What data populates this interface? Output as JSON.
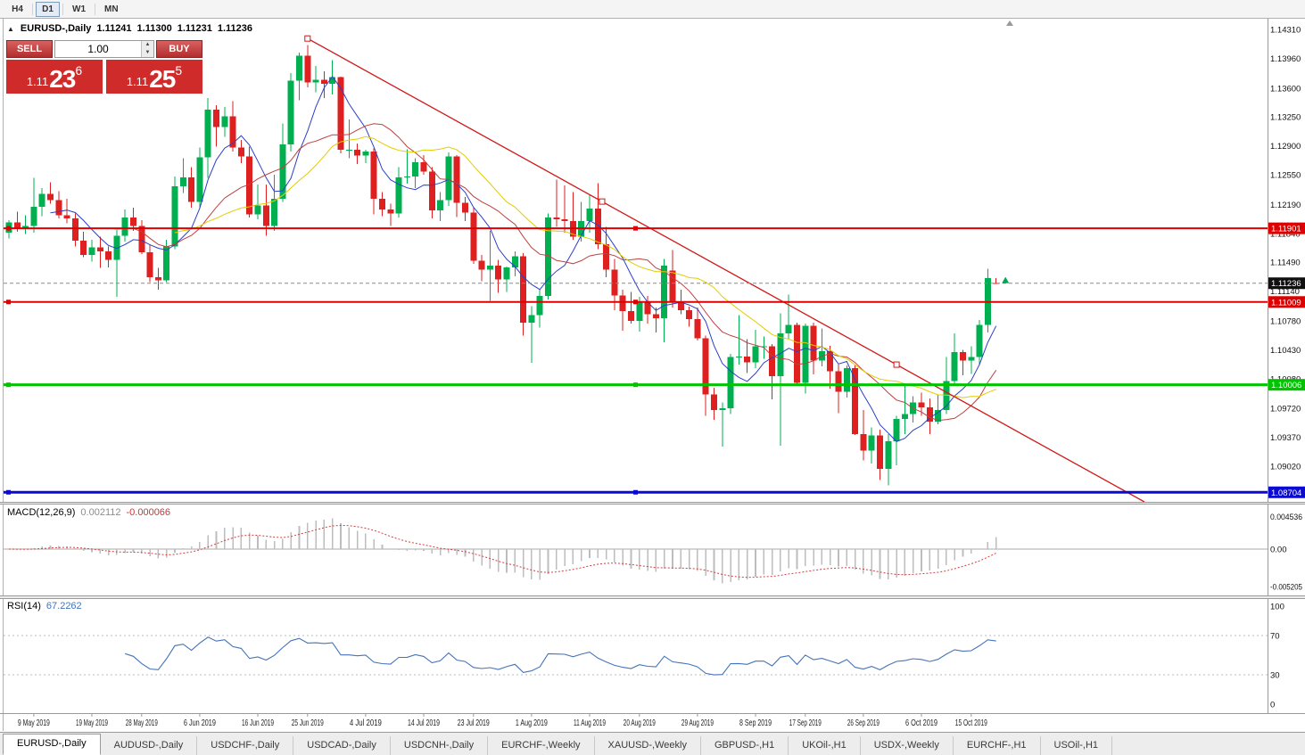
{
  "toolbar": {
    "timeframes": [
      {
        "label": "H4",
        "active": false
      },
      {
        "label": "D1",
        "active": true
      },
      {
        "label": "W1",
        "active": false
      },
      {
        "label": "MN",
        "active": false
      }
    ]
  },
  "chart": {
    "title": "EURUSD-,Daily",
    "ohlc": {
      "open": "1.11241",
      "high": "1.11300",
      "low": "1.11231",
      "close": "1.11236"
    }
  },
  "trade_panel": {
    "sell_label": "SELL",
    "buy_label": "BUY",
    "volume": "1.00",
    "sell_price": {
      "prefix": "1.11",
      "big": "23",
      "sup": "6"
    },
    "buy_price": {
      "prefix": "1.11",
      "big": "25",
      "sup": "5"
    }
  },
  "price_axis": {
    "ticks": [
      "1.14310",
      "1.13960",
      "1.13600",
      "1.13250",
      "1.12900",
      "1.12550",
      "1.12190",
      "1.11840",
      "1.11490",
      "1.11140",
      "1.10780",
      "1.10430",
      "1.10080",
      "1.09720",
      "1.09370",
      "1.09020"
    ]
  },
  "indicators": {
    "macd": {
      "name": "MACD(12,26,9)",
      "value_main": "0.002112",
      "value_signal": "-0.000066",
      "fast": 12,
      "slow": 26,
      "signal": 9,
      "axis": [
        "0.004536",
        "0.00",
        "-0.005205"
      ],
      "hist_color": "#bdbdbd",
      "signal_color": "#d04040"
    },
    "rsi": {
      "name": "RSI(14)",
      "value": "67.2262",
      "period": 14,
      "color": "#4573b9",
      "levels": [
        70,
        30
      ],
      "axis_ticks": [
        "100",
        "70",
        "30",
        "0"
      ]
    }
  },
  "tabs": [
    {
      "label": "EURUSD-,Daily",
      "active": true
    },
    {
      "label": "AUDUSD-,Daily",
      "active": false
    },
    {
      "label": "USDCHF-,Daily",
      "active": false
    },
    {
      "label": "USDCAD-,Daily",
      "active": false
    },
    {
      "label": "USDCNH-,Daily",
      "active": false
    },
    {
      "label": "EURCHF-,Weekly",
      "active": false
    },
    {
      "label": "XAUUSD-,Weekly",
      "active": false
    },
    {
      "label": "GBPUSD-,H1",
      "active": false
    },
    {
      "label": "UKOil-,H1",
      "active": false
    },
    {
      "label": "USDX-,Weekly",
      "active": false
    },
    {
      "label": "EURCHF-,H1",
      "active": false
    },
    {
      "label": "USOil-,H1",
      "active": false
    }
  ],
  "chart_data": {
    "type": "candlestick",
    "symbol": "EURUSD-",
    "timeframe": "Daily",
    "up_color": "#00b050",
    "down_color": "#df2020",
    "candles": [
      [
        1.1185,
        1.12,
        1.1178,
        1.1197
      ],
      [
        1.1197,
        1.121,
        1.1186,
        1.1191
      ],
      [
        1.1191,
        1.1206,
        1.1183,
        1.1193
      ],
      [
        1.1193,
        1.1251,
        1.1185,
        1.1216
      ],
      [
        1.1216,
        1.1239,
        1.1205,
        1.1232
      ],
      [
        1.1232,
        1.1246,
        1.122,
        1.1224
      ],
      [
        1.1224,
        1.1235,
        1.1202,
        1.1206
      ],
      [
        1.1206,
        1.1226,
        1.1196,
        1.1202
      ],
      [
        1.1202,
        1.1208,
        1.1168,
        1.1175
      ],
      [
        1.1175,
        1.1186,
        1.1155,
        1.1158
      ],
      [
        1.1158,
        1.1176,
        1.115,
        1.1167
      ],
      [
        1.1167,
        1.118,
        1.1142,
        1.1162
      ],
      [
        1.1162,
        1.1168,
        1.1143,
        1.1152
      ],
      [
        1.1152,
        1.1188,
        1.1107,
        1.1181
      ],
      [
        1.1181,
        1.1213,
        1.1174,
        1.1203
      ],
      [
        1.1203,
        1.1215,
        1.1187,
        1.1193
      ],
      [
        1.1193,
        1.12,
        1.1159,
        1.1161
      ],
      [
        1.1161,
        1.117,
        1.1125,
        1.1131
      ],
      [
        1.1131,
        1.1142,
        1.1116,
        1.1127
      ],
      [
        1.1127,
        1.1176,
        1.1125,
        1.1168
      ],
      [
        1.1168,
        1.1253,
        1.1165,
        1.1241
      ],
      [
        1.1241,
        1.1275,
        1.1233,
        1.1252
      ],
      [
        1.1252,
        1.1264,
        1.1215,
        1.1222
      ],
      [
        1.1222,
        1.1288,
        1.1215,
        1.1276
      ],
      [
        1.1276,
        1.1348,
        1.1251,
        1.1334
      ],
      [
        1.1334,
        1.1339,
        1.1289,
        1.1313
      ],
      [
        1.1313,
        1.1337,
        1.1301,
        1.1326
      ],
      [
        1.1326,
        1.1344,
        1.1283,
        1.1288
      ],
      [
        1.1288,
        1.1297,
        1.1269,
        1.1277
      ],
      [
        1.1277,
        1.1289,
        1.1203,
        1.1207
      ],
      [
        1.1207,
        1.1243,
        1.1201,
        1.1218
      ],
      [
        1.1218,
        1.1243,
        1.1181,
        1.1193
      ],
      [
        1.1193,
        1.1255,
        1.1187,
        1.1226
      ],
      [
        1.1226,
        1.1317,
        1.1222,
        1.1292
      ],
      [
        1.1292,
        1.1378,
        1.1283,
        1.1369
      ],
      [
        1.1369,
        1.1403,
        1.1345,
        1.1399
      ],
      [
        1.1399,
        1.1412,
        1.1361,
        1.1367
      ],
      [
        1.1367,
        1.1387,
        1.1355,
        1.137
      ],
      [
        1.137,
        1.138,
        1.1348,
        1.1365
      ],
      [
        1.1365,
        1.1394,
        1.1352,
        1.1373
      ],
      [
        1.1373,
        1.1374,
        1.1281,
        1.1285
      ],
      [
        1.1285,
        1.1322,
        1.1275,
        1.1285
      ],
      [
        1.1285,
        1.1293,
        1.1268,
        1.1278
      ],
      [
        1.1278,
        1.1285,
        1.1269,
        1.1283
      ],
      [
        1.1283,
        1.1287,
        1.1207,
        1.1226
      ],
      [
        1.1226,
        1.1234,
        1.1205,
        1.1213
      ],
      [
        1.1213,
        1.122,
        1.1193,
        1.1208
      ],
      [
        1.1208,
        1.1264,
        1.1203,
        1.1252
      ],
      [
        1.1252,
        1.1286,
        1.1244,
        1.1253
      ],
      [
        1.1253,
        1.1275,
        1.1239,
        1.127
      ],
      [
        1.127,
        1.1279,
        1.1255,
        1.1259
      ],
      [
        1.1259,
        1.1264,
        1.1202,
        1.1212
      ],
      [
        1.1212,
        1.1234,
        1.1199,
        1.1224
      ],
      [
        1.1224,
        1.1282,
        1.1217,
        1.1277
      ],
      [
        1.1277,
        1.1279,
        1.1204,
        1.1221
      ],
      [
        1.1221,
        1.1228,
        1.1199,
        1.1209
      ],
      [
        1.1209,
        1.1215,
        1.1147,
        1.1151
      ],
      [
        1.1151,
        1.1158,
        1.1126,
        1.114
      ],
      [
        1.114,
        1.1187,
        1.1102,
        1.1145
      ],
      [
        1.1145,
        1.1152,
        1.1112,
        1.1128
      ],
      [
        1.1128,
        1.1144,
        1.1113,
        1.1143
      ],
      [
        1.1143,
        1.1162,
        1.1132,
        1.1156
      ],
      [
        1.1156,
        1.116,
        1.106,
        1.1076
      ],
      [
        1.1076,
        1.1096,
        1.1027,
        1.1085
      ],
      [
        1.1085,
        1.1116,
        1.107,
        1.1108
      ],
      [
        1.1108,
        1.1208,
        1.1104,
        1.1203
      ],
      [
        1.1203,
        1.1249,
        1.1192,
        1.1201
      ],
      [
        1.1201,
        1.1242,
        1.1185,
        1.1199
      ],
      [
        1.1199,
        1.1234,
        1.1176,
        1.118
      ],
      [
        1.118,
        1.1222,
        1.1174,
        1.1199
      ],
      [
        1.1199,
        1.123,
        1.1185,
        1.1214
      ],
      [
        1.1214,
        1.1245,
        1.1165,
        1.1171
      ],
      [
        1.1171,
        1.1192,
        1.1131,
        1.114
      ],
      [
        1.114,
        1.1153,
        1.1091,
        1.1109
      ],
      [
        1.1109,
        1.1116,
        1.1066,
        1.109
      ],
      [
        1.109,
        1.1113,
        1.1075,
        1.1078
      ],
      [
        1.1078,
        1.1107,
        1.1065,
        1.11
      ],
      [
        1.11,
        1.1108,
        1.1075,
        1.1086
      ],
      [
        1.1086,
        1.1094,
        1.1064,
        1.1081
      ],
      [
        1.1081,
        1.1153,
        1.1052,
        1.1145
      ],
      [
        1.1139,
        1.1164,
        1.1094,
        1.1101
      ],
      [
        1.1101,
        1.1116,
        1.1086,
        1.1091
      ],
      [
        1.1091,
        1.1095,
        1.1071,
        1.108
      ],
      [
        1.108,
        1.1094,
        1.1054,
        1.1057
      ],
      [
        1.1057,
        1.106,
        1.0963,
        1.0989
      ],
      [
        1.0989,
        1.0997,
        1.0958,
        1.097
      ],
      [
        1.097,
        1.0979,
        1.0926,
        1.0972
      ],
      [
        1.0972,
        1.1038,
        1.0965,
        1.1034
      ],
      [
        1.1034,
        1.1085,
        1.1025,
        1.1035
      ],
      [
        1.1035,
        1.1056,
        1.1015,
        1.1028
      ],
      [
        1.1028,
        1.1067,
        1.1021,
        1.1047
      ],
      [
        1.1047,
        1.1059,
        1.1032,
        1.1047
      ],
      [
        1.1047,
        1.105,
        1.0983,
        1.1011
      ],
      [
        1.1011,
        1.1087,
        1.0927,
        1.1063
      ],
      [
        1.1063,
        1.111,
        1.1056,
        1.1073
      ],
      [
        1.1073,
        1.1076,
        1.0999,
        1.1003
      ],
      [
        1.1003,
        1.1075,
        1.099,
        1.1072
      ],
      [
        1.1072,
        1.1076,
        1.1013,
        1.103
      ],
      [
        1.103,
        1.1069,
        1.1023,
        1.1041
      ],
      [
        1.1041,
        1.1048,
        1.0996,
        1.1017
      ],
      [
        1.1017,
        1.1025,
        1.0966,
        1.0992
      ],
      [
        1.0992,
        1.1024,
        1.0985,
        1.1021
      ],
      [
        1.1021,
        1.1024,
        1.094,
        1.0941
      ],
      [
        1.0941,
        1.097,
        1.0909,
        1.0921
      ],
      [
        1.0921,
        1.0949,
        1.0905,
        1.0939
      ],
      [
        1.0939,
        1.0946,
        1.0885,
        1.0899
      ],
      [
        1.0899,
        1.0941,
        1.0879,
        1.0932
      ],
      [
        1.0932,
        1.0963,
        1.0903,
        1.0959
      ],
      [
        1.0959,
        1.0999,
        1.0941,
        1.0965
      ],
      [
        1.0965,
        1.0987,
        1.0955,
        1.0979
      ],
      [
        1.0979,
        1.0991,
        1.0963,
        1.0973
      ],
      [
        1.0973,
        1.0984,
        1.0941,
        1.0956
      ],
      [
        1.0956,
        1.0989,
        1.0953,
        1.097
      ],
      [
        1.097,
        1.1034,
        1.0965,
        1.1005
      ],
      [
        1.1005,
        1.1063,
        1.1,
        1.104
      ],
      [
        1.104,
        1.1043,
        1.1012,
        1.103
      ],
      [
        1.103,
        1.1047,
        1.1014,
        1.1034
      ],
      [
        1.1034,
        1.1079,
        1.1024,
        1.1073
      ],
      [
        1.1073,
        1.1141,
        1.1064,
        1.113
      ],
      [
        1.11241,
        1.113,
        1.11231,
        1.11236
      ]
    ],
    "moving_averages": [
      {
        "period": 6,
        "color": "#2b3fc8"
      },
      {
        "period": 13,
        "color": "#bf4040"
      },
      {
        "period": 21,
        "color": "#e3cc00"
      }
    ],
    "trendline": {
      "color": "#d01818",
      "points": [
        {
          "index": 36,
          "price": 1.142
        },
        {
          "index": 107,
          "price": 1.1025
        }
      ],
      "ray": true
    },
    "levels": [
      {
        "label": "1.11901",
        "price": 1.11901,
        "color": "#dd0000",
        "width": 2
      },
      {
        "label": "1.11009",
        "price": 1.11009,
        "color": "#dd0000",
        "width": 2
      },
      {
        "label": "1.10006",
        "price": 1.10006,
        "color": "#00c400",
        "width": 3
      },
      {
        "label": "1.08704",
        "price": 1.08704,
        "color": "#0a0ad2",
        "width": 3
      }
    ],
    "current_price": {
      "label": "1.11236",
      "value": 1.11236,
      "tag_color": "#101010"
    },
    "tick_arrow": {
      "index": 119.7,
      "price": 1.1127,
      "color": "#00a651"
    },
    "date_labels": [
      {
        "text": "9 May 2019",
        "index": 3
      },
      {
        "text": "19 May 2019",
        "index": 10
      },
      {
        "text": "28 May 2019",
        "index": 16
      },
      {
        "text": "6 Jun 2019",
        "index": 23
      },
      {
        "text": "16 Jun 2019",
        "index": 30
      },
      {
        "text": "25 Jun 2019",
        "index": 36
      },
      {
        "text": "4 Jul 2019",
        "index": 43
      },
      {
        "text": "14 Jul 2019",
        "index": 50
      },
      {
        "text": "23 Jul 2019",
        "index": 56
      },
      {
        "text": "1 Aug 2019",
        "index": 63
      },
      {
        "text": "11 Aug 2019",
        "index": 70
      },
      {
        "text": "20 Aug 2019",
        "index": 76
      },
      {
        "text": "29 Aug 2019",
        "index": 83
      },
      {
        "text": "8 Sep 2019",
        "index": 90
      },
      {
        "text": "17 Sep 2019",
        "index": 96
      },
      {
        "text": "26 Sep 2019",
        "index": 103
      },
      {
        "text": "6 Oct 2019",
        "index": 110
      },
      {
        "text": "15 Oct 2019",
        "index": 116
      }
    ]
  }
}
